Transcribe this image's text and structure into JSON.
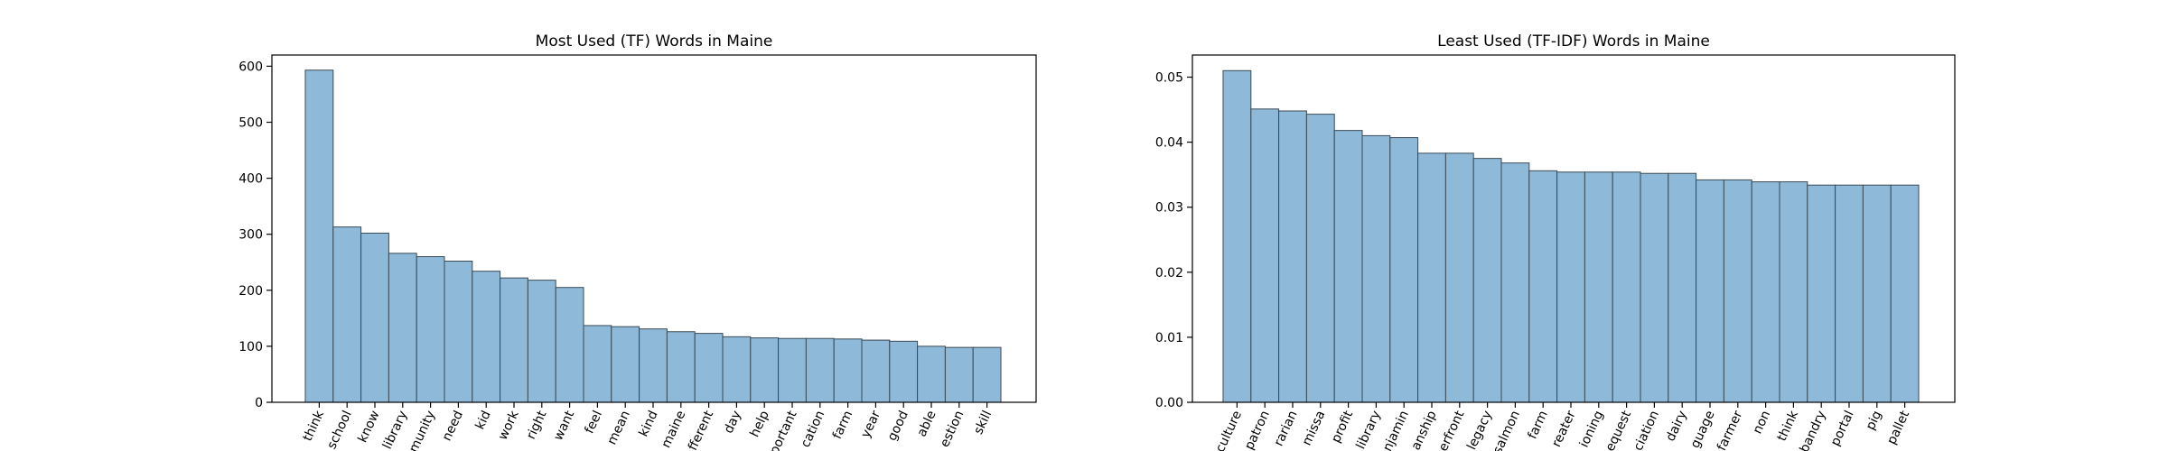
{
  "chart_data": [
    {
      "type": "bar",
      "title": "Most Used (TF) Words in Maine",
      "xlabel": "",
      "ylabel": "",
      "ylim": [
        0,
        620
      ],
      "yticks": [
        0,
        100,
        200,
        300,
        400,
        500,
        600
      ],
      "ytick_labels": [
        "0",
        "100",
        "200",
        "300",
        "400",
        "500",
        "600"
      ],
      "categories": [
        "think",
        "school",
        "know",
        "library",
        "community",
        "need",
        "kid",
        "work",
        "right",
        "want",
        "feel",
        "mean",
        "kind",
        "maine",
        "different",
        "day",
        "help",
        "important",
        "education",
        "farm",
        "year",
        "good",
        "able",
        "question",
        "skill"
      ],
      "tick_labels": [
        "think",
        "school",
        "know",
        "library",
        "munity",
        "need",
        "kid",
        "work",
        "right",
        "want",
        "feel",
        "mean",
        "kind",
        "maine",
        "fferent",
        "day",
        "help",
        "portant",
        "cation",
        "farm",
        "year",
        "good",
        "able",
        "estion",
        "skill"
      ],
      "values": [
        593,
        313,
        302,
        266,
        260,
        252,
        234,
        222,
        218,
        205,
        137,
        135,
        131,
        126,
        123,
        117,
        115,
        114,
        114,
        113,
        111,
        109,
        100,
        98,
        98
      ]
    },
    {
      "type": "bar",
      "title": "Least Used (TF-IDF) Words in Maine",
      "xlabel": "",
      "ylabel": "",
      "ylim": [
        0,
        0.0534
      ],
      "yticks": [
        0,
        0.01,
        0.02,
        0.03,
        0.04,
        0.05
      ],
      "ytick_labels": [
        "0.00",
        "0.01",
        "0.02",
        "0.03",
        "0.04",
        "0.05"
      ],
      "categories": [
        "agriculture",
        "patron",
        "librarian",
        "missa",
        "profit",
        "library",
        "benjamin",
        "stewardship",
        "waterfront",
        "legacy",
        "salmon",
        "farm",
        "greater",
        "questioning",
        "request",
        "association",
        "dairy",
        "language",
        "farmer",
        "non",
        "think",
        "husbandry",
        "portal",
        "pig",
        "pallet"
      ],
      "tick_labels": [
        "culture",
        "patron",
        "rarian",
        "missa",
        "profit",
        "library",
        "njamin",
        "anship",
        "erfront",
        "legacy",
        "salmon",
        "farm",
        "reater",
        "ioning",
        "equest",
        "ciation",
        "dairy",
        "guage",
        "farmer",
        "non",
        "think",
        "bandry",
        "portal",
        "pig",
        "pallet"
      ],
      "values": [
        0.051,
        0.0451,
        0.0448,
        0.0443,
        0.0418,
        0.041,
        0.0407,
        0.0383,
        0.0383,
        0.0375,
        0.0368,
        0.0356,
        0.0354,
        0.0354,
        0.0354,
        0.0352,
        0.0352,
        0.0342,
        0.0342,
        0.0339,
        0.0339,
        0.0334,
        0.0334,
        0.0334,
        0.0334
      ]
    }
  ]
}
